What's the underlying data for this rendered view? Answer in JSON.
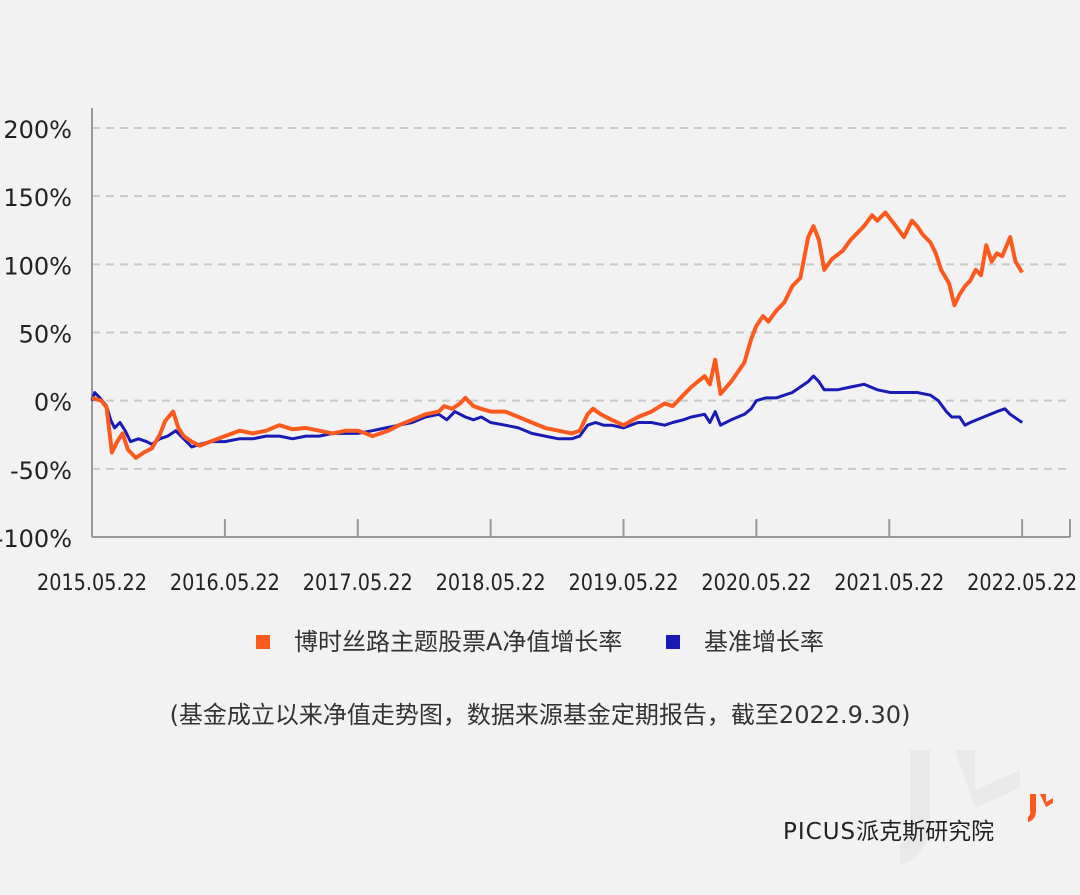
{
  "colors": {
    "fund": "#fa5a1e",
    "benchmark": "#1a1ab4",
    "grid": "#c8c8c8",
    "axis": "#999999",
    "tick_text": "#222222"
  },
  "legend": {
    "fund_label": "博时丝路主题股票A净值增长率",
    "benchmark_label": "基准增长率"
  },
  "caption": "(基金成立以来净值走势图，数据来源基金定期报告，截至2022.9.30)",
  "brand": {
    "latin": "PICUS",
    "cjk": "派克斯研究院"
  },
  "chart_data": {
    "type": "line",
    "title": "",
    "xlabel": "",
    "ylabel": "",
    "y_ticks": [
      "200%",
      "150%",
      "100%",
      "50%",
      "0%",
      "-50%",
      "-100%"
    ],
    "y_tick_values": [
      200,
      150,
      100,
      50,
      0,
      -50,
      -100
    ],
    "ylim": [
      -100,
      200
    ],
    "x_ticks": [
      "2015.05.22",
      "2016.05.22",
      "2017.05.22",
      "2018.05.22",
      "2019.05.22",
      "2020.05.22",
      "2021.05.22",
      "2022.05.22"
    ],
    "x_tick_years": [
      2015.39,
      2016.39,
      2017.39,
      2018.39,
      2019.39,
      2020.39,
      2021.39,
      2022.39
    ],
    "xlim": [
      2015.39,
      2022.75
    ],
    "grid": true,
    "legend_position": "bottom-center",
    "series": [
      {
        "name": "博时丝路主题股票A净值增长率",
        "color_key": "fund",
        "points": [
          [
            2015.39,
            2
          ],
          [
            2015.46,
            0
          ],
          [
            2015.5,
            -5
          ],
          [
            2015.54,
            -38
          ],
          [
            2015.58,
            -30
          ],
          [
            2015.62,
            -24
          ],
          [
            2015.66,
            -36
          ],
          [
            2015.72,
            -42
          ],
          [
            2015.78,
            -38
          ],
          [
            2015.84,
            -35
          ],
          [
            2015.9,
            -25
          ],
          [
            2015.94,
            -15
          ],
          [
            2016.0,
            -8
          ],
          [
            2016.04,
            -20
          ],
          [
            2016.08,
            -26
          ],
          [
            2016.14,
            -30
          ],
          [
            2016.2,
            -33
          ],
          [
            2016.28,
            -30
          ],
          [
            2016.39,
            -26
          ],
          [
            2016.5,
            -22
          ],
          [
            2016.6,
            -24
          ],
          [
            2016.7,
            -22
          ],
          [
            2016.8,
            -18
          ],
          [
            2016.9,
            -21
          ],
          [
            2017.0,
            -20
          ],
          [
            2017.1,
            -22
          ],
          [
            2017.2,
            -24
          ],
          [
            2017.3,
            -22
          ],
          [
            2017.39,
            -22
          ],
          [
            2017.45,
            -24
          ],
          [
            2017.5,
            -26
          ],
          [
            2017.56,
            -24
          ],
          [
            2017.62,
            -22
          ],
          [
            2017.7,
            -18
          ],
          [
            2017.8,
            -14
          ],
          [
            2017.9,
            -10
          ],
          [
            2018.0,
            -8
          ],
          [
            2018.04,
            -4
          ],
          [
            2018.1,
            -6
          ],
          [
            2018.16,
            -2
          ],
          [
            2018.2,
            2
          ],
          [
            2018.26,
            -4
          ],
          [
            2018.32,
            -6
          ],
          [
            2018.39,
            -8
          ],
          [
            2018.5,
            -8
          ],
          [
            2018.6,
            -12
          ],
          [
            2018.7,
            -16
          ],
          [
            2018.8,
            -20
          ],
          [
            2018.9,
            -22
          ],
          [
            2019.0,
            -24
          ],
          [
            2019.06,
            -22
          ],
          [
            2019.12,
            -10
          ],
          [
            2019.16,
            -6
          ],
          [
            2019.22,
            -10
          ],
          [
            2019.3,
            -14
          ],
          [
            2019.39,
            -18
          ],
          [
            2019.5,
            -12
          ],
          [
            2019.6,
            -8
          ],
          [
            2019.7,
            -2
          ],
          [
            2019.76,
            -4
          ],
          [
            2019.84,
            4
          ],
          [
            2019.9,
            10
          ],
          [
            2020.0,
            18
          ],
          [
            2020.04,
            12
          ],
          [
            2020.08,
            30
          ],
          [
            2020.12,
            5
          ],
          [
            2020.2,
            14
          ],
          [
            2020.3,
            28
          ],
          [
            2020.35,
            45
          ],
          [
            2020.39,
            55
          ],
          [
            2020.44,
            62
          ],
          [
            2020.48,
            58
          ],
          [
            2020.54,
            66
          ],
          [
            2020.6,
            72
          ],
          [
            2020.66,
            84
          ],
          [
            2020.72,
            90
          ],
          [
            2020.78,
            120
          ],
          [
            2020.82,
            128
          ],
          [
            2020.86,
            118
          ],
          [
            2020.9,
            96
          ],
          [
            2020.96,
            104
          ],
          [
            2021.04,
            110
          ],
          [
            2021.1,
            118
          ],
          [
            2021.16,
            124
          ],
          [
            2021.2,
            128
          ],
          [
            2021.26,
            136
          ],
          [
            2021.3,
            132
          ],
          [
            2021.36,
            138
          ],
          [
            2021.44,
            128
          ],
          [
            2021.5,
            120
          ],
          [
            2021.56,
            132
          ],
          [
            2021.6,
            128
          ],
          [
            2021.64,
            122
          ],
          [
            2021.7,
            116
          ],
          [
            2021.74,
            108
          ],
          [
            2021.78,
            96
          ],
          [
            2021.84,
            86
          ],
          [
            2021.88,
            70
          ],
          [
            2021.92,
            78
          ],
          [
            2021.96,
            84
          ],
          [
            2022.0,
            88
          ],
          [
            2022.04,
            96
          ],
          [
            2022.08,
            92
          ],
          [
            2022.12,
            114
          ],
          [
            2022.16,
            102
          ],
          [
            2022.2,
            108
          ],
          [
            2022.24,
            106
          ],
          [
            2022.3,
            120
          ],
          [
            2022.34,
            102
          ],
          [
            2022.39,
            94
          ]
        ]
      },
      {
        "name": "基准增长率",
        "color_key": "benchmark",
        "points": [
          [
            2015.39,
            0
          ],
          [
            2015.41,
            6
          ],
          [
            2015.45,
            2
          ],
          [
            2015.5,
            -4
          ],
          [
            2015.53,
            -14
          ],
          [
            2015.56,
            -20
          ],
          [
            2015.6,
            -16
          ],
          [
            2015.64,
            -22
          ],
          [
            2015.68,
            -30
          ],
          [
            2015.74,
            -28
          ],
          [
            2015.8,
            -30
          ],
          [
            2015.84,
            -32
          ],
          [
            2015.9,
            -28
          ],
          [
            2015.96,
            -26
          ],
          [
            2016.02,
            -22
          ],
          [
            2016.08,
            -28
          ],
          [
            2016.14,
            -34
          ],
          [
            2016.2,
            -32
          ],
          [
            2016.28,
            -30
          ],
          [
            2016.39,
            -30
          ],
          [
            2016.5,
            -28
          ],
          [
            2016.6,
            -28
          ],
          [
            2016.7,
            -26
          ],
          [
            2016.8,
            -26
          ],
          [
            2016.9,
            -28
          ],
          [
            2017.0,
            -26
          ],
          [
            2017.1,
            -26
          ],
          [
            2017.2,
            -24
          ],
          [
            2017.3,
            -24
          ],
          [
            2017.39,
            -24
          ],
          [
            2017.5,
            -22
          ],
          [
            2017.6,
            -20
          ],
          [
            2017.7,
            -18
          ],
          [
            2017.8,
            -16
          ],
          [
            2017.9,
            -12
          ],
          [
            2018.0,
            -10
          ],
          [
            2018.06,
            -14
          ],
          [
            2018.12,
            -8
          ],
          [
            2018.2,
            -12
          ],
          [
            2018.26,
            -14
          ],
          [
            2018.32,
            -12
          ],
          [
            2018.39,
            -16
          ],
          [
            2018.5,
            -18
          ],
          [
            2018.6,
            -20
          ],
          [
            2018.7,
            -24
          ],
          [
            2018.8,
            -26
          ],
          [
            2018.9,
            -28
          ],
          [
            2019.0,
            -28
          ],
          [
            2019.06,
            -26
          ],
          [
            2019.12,
            -18
          ],
          [
            2019.18,
            -16
          ],
          [
            2019.24,
            -18
          ],
          [
            2019.3,
            -18
          ],
          [
            2019.39,
            -20
          ],
          [
            2019.5,
            -16
          ],
          [
            2019.6,
            -16
          ],
          [
            2019.7,
            -18
          ],
          [
            2019.76,
            -16
          ],
          [
            2019.84,
            -14
          ],
          [
            2019.9,
            -12
          ],
          [
            2020.0,
            -10
          ],
          [
            2020.04,
            -16
          ],
          [
            2020.08,
            -8
          ],
          [
            2020.12,
            -18
          ],
          [
            2020.2,
            -14
          ],
          [
            2020.3,
            -10
          ],
          [
            2020.35,
            -6
          ],
          [
            2020.39,
            0
          ],
          [
            2020.46,
            2
          ],
          [
            2020.54,
            2
          ],
          [
            2020.6,
            4
          ],
          [
            2020.66,
            6
          ],
          [
            2020.72,
            10
          ],
          [
            2020.78,
            14
          ],
          [
            2020.82,
            18
          ],
          [
            2020.86,
            14
          ],
          [
            2020.9,
            8
          ],
          [
            2021.0,
            8
          ],
          [
            2021.1,
            10
          ],
          [
            2021.2,
            12
          ],
          [
            2021.3,
            8
          ],
          [
            2021.4,
            6
          ],
          [
            2021.5,
            6
          ],
          [
            2021.6,
            6
          ],
          [
            2021.7,
            4
          ],
          [
            2021.76,
            0
          ],
          [
            2021.82,
            -8
          ],
          [
            2021.86,
            -12
          ],
          [
            2021.92,
            -12
          ],
          [
            2021.96,
            -18
          ],
          [
            2022.0,
            -16
          ],
          [
            2022.1,
            -12
          ],
          [
            2022.2,
            -8
          ],
          [
            2022.26,
            -6
          ],
          [
            2022.3,
            -10
          ],
          [
            2022.36,
            -14
          ],
          [
            2022.39,
            -16
          ]
        ]
      }
    ]
  }
}
